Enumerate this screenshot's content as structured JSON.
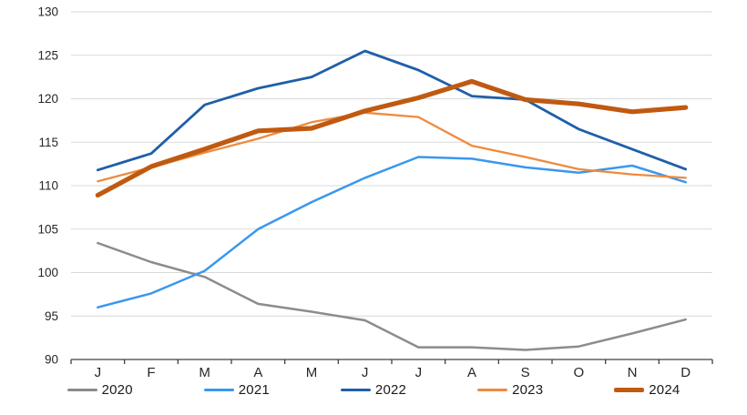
{
  "chart_data": {
    "type": "line",
    "title": "",
    "xlabel": "",
    "ylabel": "",
    "categories": [
      "J",
      "F",
      "M",
      "A",
      "M",
      "J",
      "J",
      "A",
      "S",
      "O",
      "N",
      "D"
    ],
    "series": [
      {
        "name": "2020",
        "color": "#8C8C8C",
        "line_width": 2.5,
        "values": [
          103.4,
          101.2,
          99.5,
          96.4,
          95.5,
          94.5,
          91.4,
          91.4,
          91.1,
          91.5,
          93.0,
          94.6
        ]
      },
      {
        "name": "2021",
        "color": "#3A97EE",
        "line_width": 2.5,
        "values": [
          96.0,
          97.6,
          100.2,
          105.0,
          108.1,
          110.9,
          113.3,
          113.1,
          112.1,
          111.5,
          112.3,
          110.4
        ]
      },
      {
        "name": "2022",
        "color": "#1F5FA8",
        "line_width": 2.8,
        "values": [
          111.8,
          113.7,
          119.3,
          121.2,
          122.5,
          125.5,
          123.3,
          120.3,
          119.9,
          116.5,
          114.2,
          111.9
        ]
      },
      {
        "name": "2023",
        "color": "#EE8A3E",
        "line_width": 2.3,
        "values": [
          110.5,
          112.1,
          113.8,
          115.4,
          117.3,
          118.4,
          117.9,
          114.6,
          113.3,
          111.9,
          111.3,
          110.9
        ]
      },
      {
        "name": "2024",
        "color": "#C05A11",
        "line_width": 5.2,
        "values": [
          108.9,
          112.2,
          114.2,
          116.3,
          116.6,
          118.6,
          120.1,
          122.0,
          119.9,
          119.4,
          118.5,
          119.0
        ]
      }
    ],
    "ylim": [
      90,
      130
    ],
    "yticks": [
      90,
      95,
      100,
      105,
      110,
      115,
      120,
      125,
      130
    ],
    "grid": "horizontal",
    "legend_position": "bottom",
    "gridline_color": "#D9D9D9",
    "axis_color": "#404040",
    "tick_label_color": "#262626"
  }
}
